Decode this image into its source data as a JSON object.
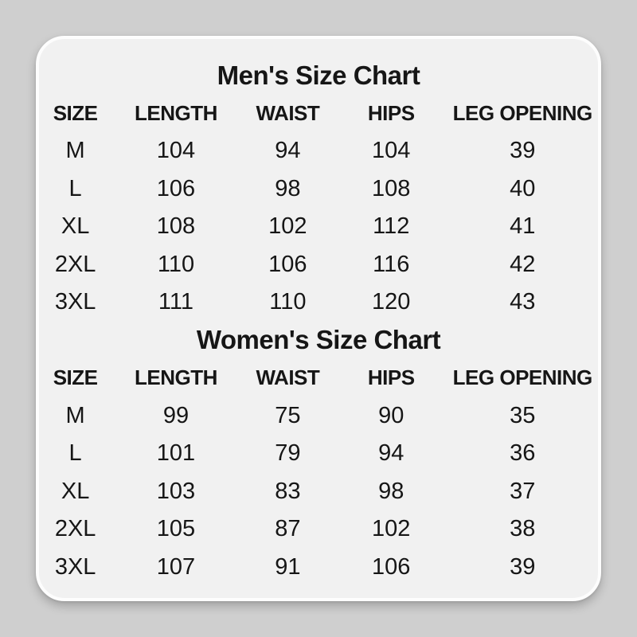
{
  "page": {
    "background_color": "#cfcfcf",
    "card_background_color": "#f1f1f1",
    "card_border_color": "#fdfdfd",
    "text_color": "#161616"
  },
  "chart_data": [
    {
      "type": "table",
      "title": "Men's Size Chart",
      "columns": [
        "SIZE",
        "LENGTH",
        "WAIST",
        "HIPS",
        "LEG OPENING"
      ],
      "rows": [
        [
          "M",
          "104",
          "94",
          "104",
          "39"
        ],
        [
          "L",
          "106",
          "98",
          "108",
          "40"
        ],
        [
          "XL",
          "108",
          "102",
          "112",
          "41"
        ],
        [
          "2XL",
          "110",
          "106",
          "116",
          "42"
        ],
        [
          "3XL",
          "111",
          "110",
          "120",
          "43"
        ]
      ]
    },
    {
      "type": "table",
      "title": "Women's Size Chart",
      "columns": [
        "SIZE",
        "LENGTH",
        "WAIST",
        "HIPS",
        "LEG OPENING"
      ],
      "rows": [
        [
          "M",
          "99",
          "75",
          "90",
          "35"
        ],
        [
          "L",
          "101",
          "79",
          "94",
          "36"
        ],
        [
          "XL",
          "103",
          "83",
          "98",
          "37"
        ],
        [
          "2XL",
          "105",
          "87",
          "102",
          "38"
        ],
        [
          "3XL",
          "107",
          "91",
          "106",
          "39"
        ]
      ]
    }
  ]
}
